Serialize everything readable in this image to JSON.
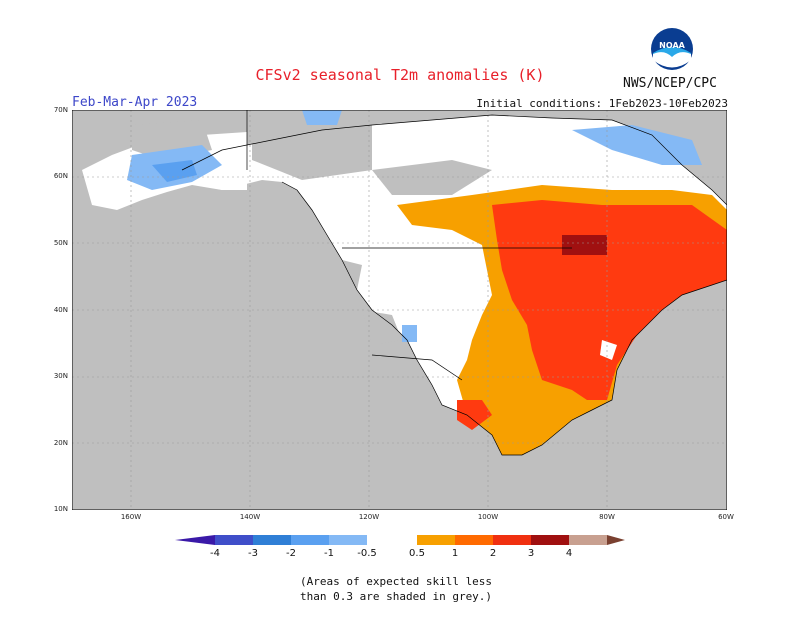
{
  "title": "CFSv2 seasonal T2m anomalies (K)",
  "period": "Feb-Mar-Apr 2023",
  "org": "NWS/NCEP/CPC",
  "initial_conditions": "Initial conditions: 1Feb2023-10Feb2023",
  "logo_text": "NOAA",
  "lat_labels": [
    "70N",
    "60N",
    "50N",
    "40N",
    "30N",
    "20N",
    "10N"
  ],
  "lon_labels": [
    "160W",
    "140W",
    "120W",
    "100W",
    "80W",
    "60W"
  ],
  "colorbar": {
    "ticks": [
      "-4",
      "-3",
      "-2",
      "-1",
      "-0.5",
      "0.5",
      "1",
      "2",
      "3",
      "4"
    ],
    "colors": [
      "#3a19a8",
      "#3f4ec9",
      "#2f7fd6",
      "#5aa0f0",
      "#84b9f5",
      "#ffffff",
      "#f7a000",
      "#ff6a00",
      "#f03010",
      "#a01010",
      "#c8a090",
      "#7a4030"
    ]
  },
  "note_line1": "(Areas of expected skill less",
  "note_line2": "than 0.3 are shaded in grey.)"
}
